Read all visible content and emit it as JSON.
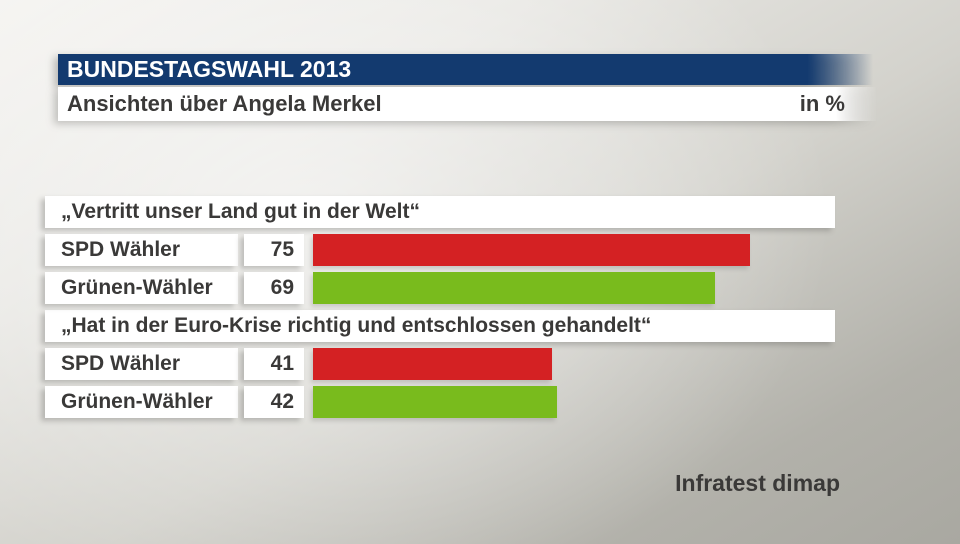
{
  "header": {
    "title": "BUNDESTAGSWAHL 2013",
    "subtitle": "Ansichten über Angela Merkel",
    "unit_label": "in %"
  },
  "chart_data": {
    "type": "bar",
    "orientation": "horizontal",
    "title": "Ansichten über Angela Merkel",
    "unit": "%",
    "xlim": [
      0,
      100
    ],
    "grid": false,
    "legend": "none",
    "colors": {
      "spd_row_bar": "#d42123",
      "gruene_row_bar": "#79bb1d",
      "header_blue": "#133a6f",
      "box_white": "#ffffff",
      "text_dark": "#3a3938"
    },
    "groups": [
      {
        "question": "„Vertritt unser Land gut in der Welt“",
        "rows": [
          {
            "label": "SPD Wähler",
            "value": 75,
            "color": "#d42123"
          },
          {
            "label": "Grünen-Wähler",
            "value": 69,
            "color": "#79bb1d"
          }
        ]
      },
      {
        "question": "„Hat in der Euro-Krise richtig und entschlossen gehandelt“",
        "rows": [
          {
            "label": "SPD Wähler",
            "value": 41,
            "color": "#d42123"
          },
          {
            "label": "Grünen-Wähler",
            "value": 42,
            "color": "#79bb1d"
          }
        ]
      }
    ]
  },
  "footer": {
    "source": "Infratest dimap"
  }
}
